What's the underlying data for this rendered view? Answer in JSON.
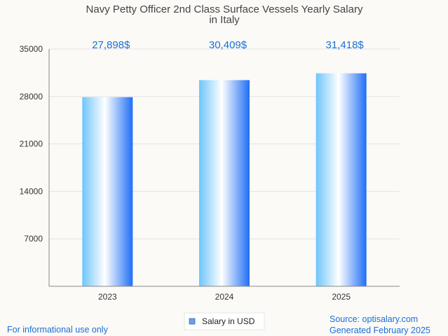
{
  "chart_data": {
    "type": "bar",
    "title_lines": [
      "Navy Petty Officer 2nd Class Surface Vessels Yearly Salary",
      "in Italy"
    ],
    "categories": [
      "2023",
      "2024",
      "2025"
    ],
    "values": [
      27898,
      30409,
      31418
    ],
    "data_labels": [
      "27,898$",
      "30,409$",
      "31,418$"
    ],
    "series": [
      {
        "name": "Salary in USD",
        "values": [
          27898,
          30409,
          31418
        ]
      }
    ],
    "ylim": [
      0,
      35000
    ],
    "yticks": [
      7000,
      14000,
      21000,
      28000,
      35000
    ],
    "grid": true,
    "legend_position": "bottom-center",
    "bar_color_dark": "#1f6ff5",
    "bar_color_light": "#ffffff",
    "bar_color_mid": "#6fc5fb"
  },
  "footer": {
    "left": "For informational use only",
    "right_line1": "Source: optisalary.com",
    "right_line2": "Generated February 2025"
  }
}
